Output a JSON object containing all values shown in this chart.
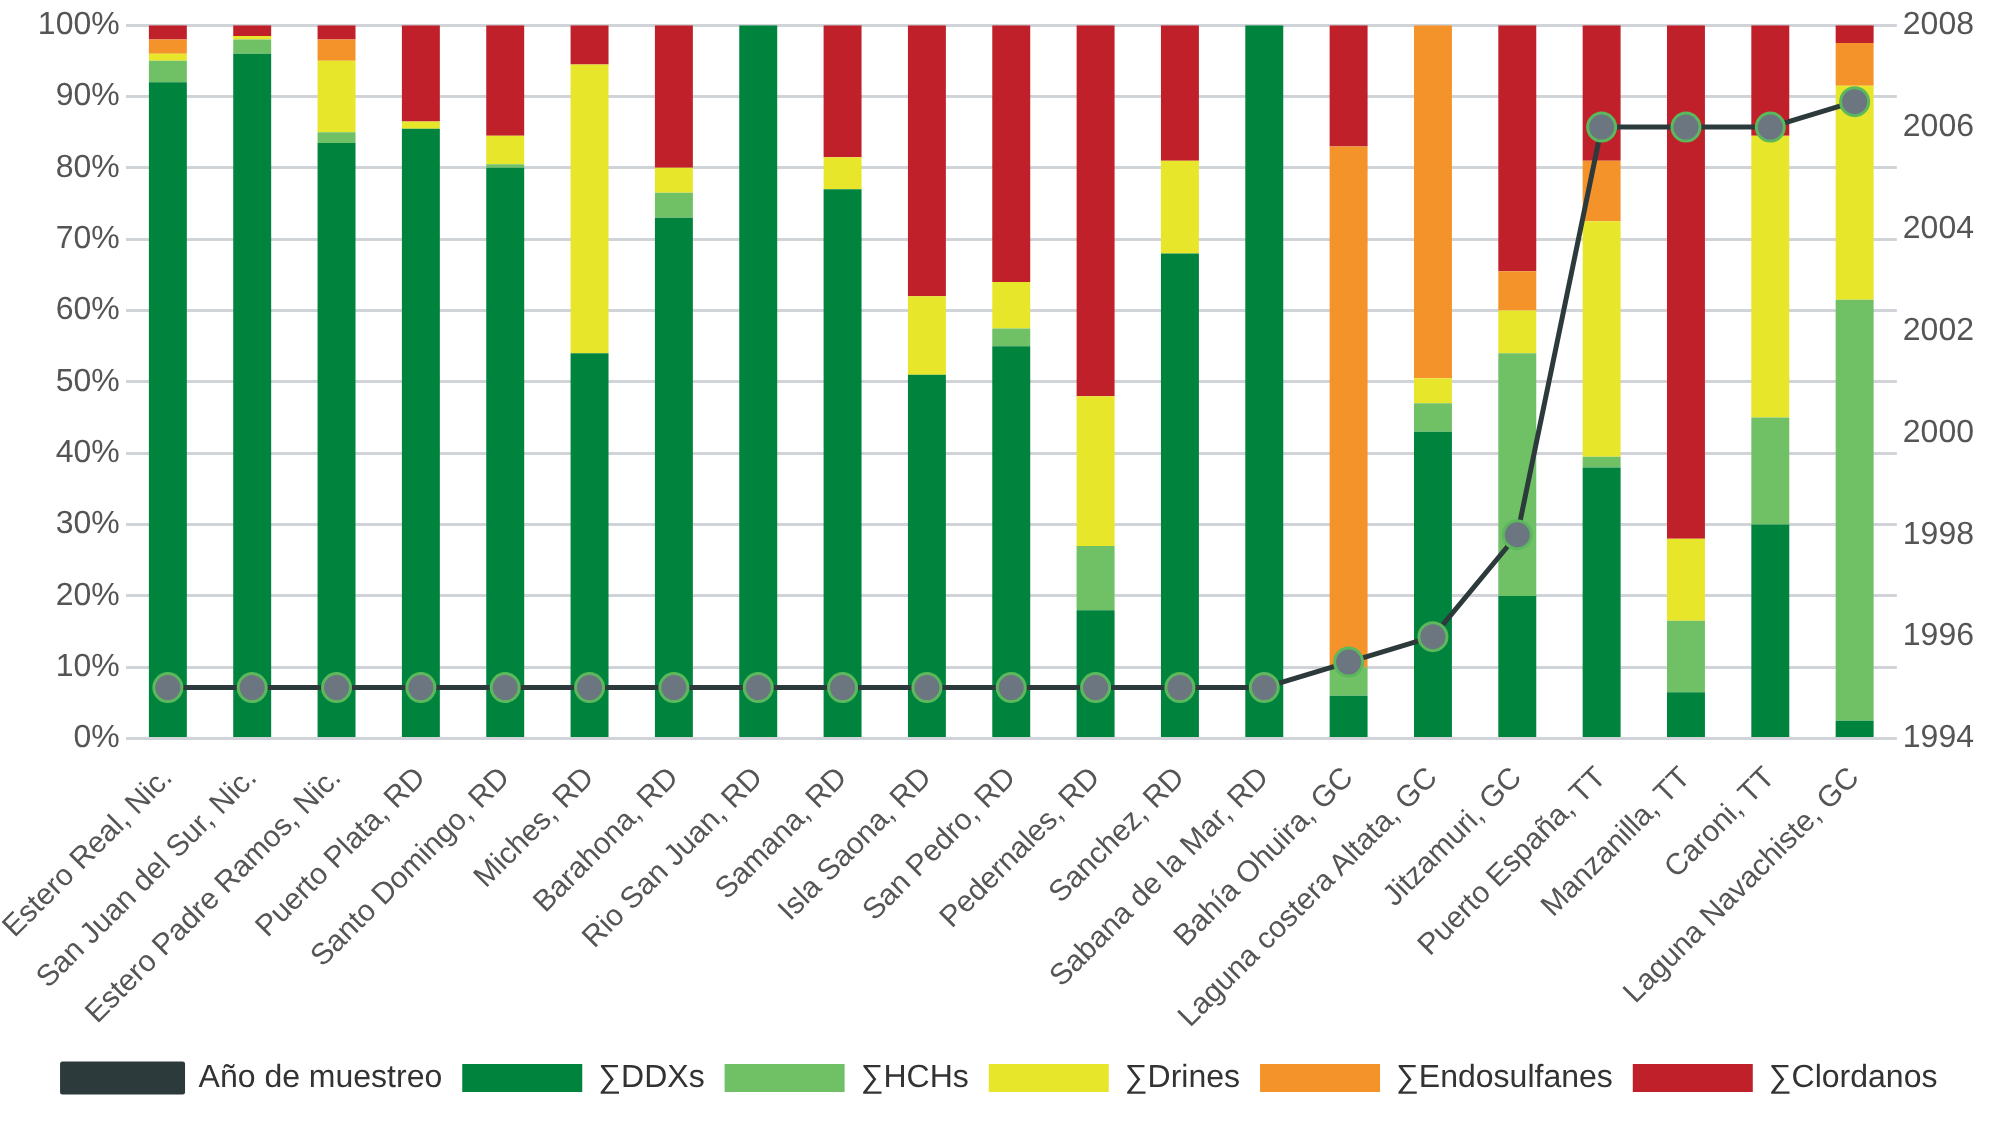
{
  "chart_data": {
    "type": "bar",
    "stacked": true,
    "categories": [
      "Estero Real, Nic.",
      "San Juan del Sur, Nic.",
      "Estero Padre Ramos, Nic.",
      "Puerto Plata, RD",
      "Santo Domingo, RD",
      "Miches, RD",
      "Barahona, RD",
      "Rio San Juan, RD",
      "Samana, RD",
      "Isla Saona, RD",
      "San Pedro, RD",
      "Pedernales, RD",
      "Sanchez, RD",
      "Sabana de la Mar, RD",
      "Bahía Ohuira, GC",
      "Laguna costera Altata, GC",
      "Jitzamuri, GC",
      "Puerto España, TT",
      "Manzanilla, TT",
      "Caroni, TT",
      "Laguna Navachiste, GC"
    ],
    "series": [
      {
        "name": "∑DDXs",
        "color": "#00843d",
        "values": [
          92,
          96,
          83.5,
          85.5,
          80,
          54,
          73,
          100,
          77,
          51,
          55,
          18,
          68,
          100,
          6,
          43,
          20,
          38,
          6.5,
          30,
          2.5
        ]
      },
      {
        "name": "∑HCHs",
        "color": "#70c066",
        "values": [
          3,
          2,
          1.5,
          0,
          0.5,
          0,
          3.5,
          0,
          0,
          0,
          2.5,
          9,
          0,
          0,
          4,
          4,
          34,
          1.5,
          10,
          15,
          59
        ]
      },
      {
        "name": "∑Drines",
        "color": "#e8e62a",
        "values": [
          1,
          0.5,
          10,
          1,
          4,
          40.5,
          3.5,
          0,
          4.5,
          11,
          6.5,
          21,
          13,
          0,
          0,
          3.5,
          6,
          33,
          11.5,
          39.5,
          30
        ]
      },
      {
        "name": "∑Endosulfanes",
        "color": "#f4932a",
        "values": [
          2,
          0,
          3,
          0,
          0,
          0,
          0,
          0,
          0,
          0,
          0,
          0,
          0,
          0,
          73,
          49.5,
          5.5,
          8.5,
          0,
          0,
          6
        ]
      },
      {
        "name": "∑Clordanos",
        "color": "#c0202a",
        "values": [
          2,
          1.5,
          2,
          13.5,
          15.5,
          5.5,
          20,
          0,
          18.5,
          38,
          36,
          52,
          19,
          0,
          17,
          0,
          34.5,
          19,
          72,
          15.5,
          2.5
        ]
      },
      {
        "name": "Año de muestreo",
        "type": "line",
        "axis": "y2",
        "color": "#2d3a3c",
        "marker": "circle",
        "values": [
          1995,
          1995,
          1995,
          1995,
          1995,
          1995,
          1995,
          1995,
          1995,
          1995,
          1995,
          1995,
          1995,
          1995,
          1995.5,
          1996,
          1998,
          2006,
          2006,
          2006,
          2006.5
        ]
      }
    ],
    "ylim": [
      0,
      100
    ],
    "yticks": [
      {
        "value": 0,
        "label": "0%"
      },
      {
        "value": 10,
        "label": "10%"
      },
      {
        "value": 20,
        "label": "20%"
      },
      {
        "value": 30,
        "label": "30%"
      },
      {
        "value": 40,
        "label": "40%"
      },
      {
        "value": 50,
        "label": "50%"
      },
      {
        "value": 60,
        "label": "60%"
      },
      {
        "value": 70,
        "label": "70%"
      },
      {
        "value": 80,
        "label": "80%"
      },
      {
        "value": 90,
        "label": "90%"
      },
      {
        "value": 100,
        "label": "100%"
      }
    ],
    "y2lim": [
      1994,
      2008
    ],
    "y2ticks": [
      1994,
      1996,
      1998,
      2000,
      2002,
      2004,
      2006,
      2008
    ],
    "grid": "y",
    "legend": "bottom"
  }
}
